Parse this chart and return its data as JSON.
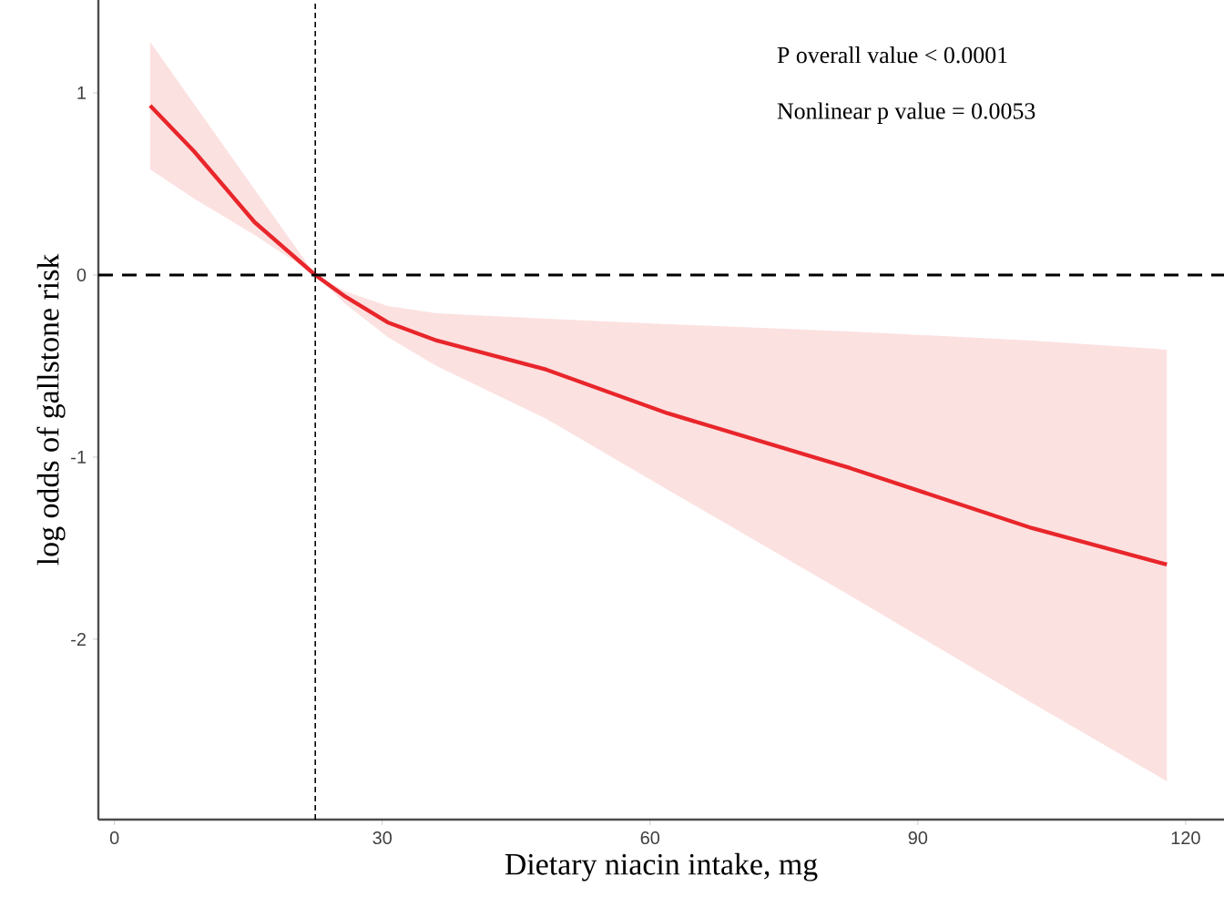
{
  "chart_data": {
    "type": "line",
    "xlabel": "Dietary niacin intake, mg",
    "ylabel": "log odds of gallstone risk",
    "annotations": [
      "P overall value  < 0.0001",
      "Nonlinear p value = 0.0053"
    ],
    "series": [
      {
        "color": "#e8262b",
        "x": [
          4,
          8.9,
          15.7,
          22.5,
          25.9,
          30.6,
          36.1,
          48.4,
          62,
          82.4,
          102.8,
          117.9
        ],
        "values": [
          0.93,
          0.68,
          0.29,
          0,
          -0.12,
          -0.26,
          -0.36,
          -0.52,
          -0.76,
          -1.06,
          -1.39,
          -1.59
        ],
        "upper": [
          1.28,
          0.94,
          0.47,
          0,
          -0.09,
          -0.17,
          -0.21,
          -0.24,
          -0.27,
          -0.31,
          -0.36,
          -0.41
        ],
        "lower": [
          0.58,
          0.42,
          0.22,
          0,
          -0.16,
          -0.34,
          -0.5,
          -0.79,
          -1.18,
          -1.76,
          -2.35,
          -2.78
        ]
      }
    ],
    "xlim": [
      -1.8,
      124.3
    ],
    "ylim": [
      -2.99,
      1.51
    ],
    "xticks": [
      0,
      30,
      60,
      90,
      120
    ],
    "yticks": [
      -2,
      -1,
      0,
      1
    ],
    "ref_lines": [
      {
        "axis": "y",
        "value": 0,
        "line_style": "dashed"
      },
      {
        "axis": "x",
        "value": 22.5,
        "line_style": "dotted"
      }
    ],
    "grid": false
  }
}
